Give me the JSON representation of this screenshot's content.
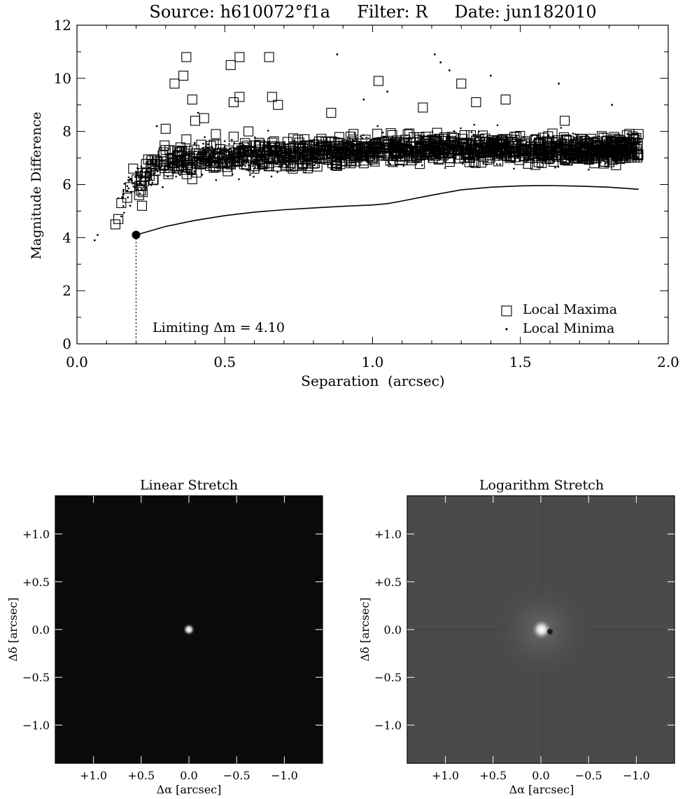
{
  "chart_data": [
    {
      "type": "scatter",
      "title": "Source: h610072°f1a     Filter: R     Date: jun182010",
      "xlabel": "Separation  (arcsec)",
      "ylabel": "Magnitude Difference",
      "xlim": [
        0.0,
        2.0
      ],
      "ylim": [
        0,
        12
      ],
      "x_ticks": [
        "0.0",
        "0.5",
        "1.0",
        "1.5",
        "2.0"
      ],
      "y_ticks": [
        "0",
        "2",
        "4",
        "6",
        "8",
        "10",
        "12"
      ],
      "legend": {
        "placement": "bottom-right",
        "entries": [
          "Local Maxima",
          "Local Minima"
        ]
      },
      "annotation": "Limiting Δm = 4.10",
      "limiting_point": {
        "x": 0.2,
        "y": 4.1
      },
      "series": [
        {
          "name": "Local Maxima",
          "marker": "square",
          "x": [
            0.13,
            0.14,
            0.15,
            0.17,
            0.18,
            0.19,
            0.21,
            0.22,
            0.23,
            0.25,
            0.27,
            0.29,
            0.3,
            0.31,
            0.33,
            0.35,
            0.37,
            0.39,
            0.4,
            0.42,
            0.45,
            0.47,
            0.49,
            0.51,
            0.53,
            0.55,
            0.57,
            0.6,
            0.62,
            0.65,
            0.67,
            0.7,
            0.73,
            0.76,
            0.79,
            0.82,
            0.85,
            0.88,
            0.91,
            0.94,
            0.97,
            1.0,
            1.03,
            1.06,
            1.09,
            1.12,
            1.15,
            1.18,
            1.21,
            1.24,
            1.27,
            1.3,
            1.33,
            1.36,
            1.39,
            1.42,
            1.45,
            1.48,
            1.51,
            1.54,
            1.57,
            1.6,
            1.63,
            1.66,
            1.69,
            1.72,
            1.75,
            1.78,
            1.81,
            1.84,
            1.87,
            1.9,
            0.33,
            0.36,
            0.37,
            0.52,
            0.55,
            0.65,
            1.02,
            1.3,
            1.45,
            0.39,
            0.53,
            0.55,
            0.66,
            0.68,
            1.35,
            1.65,
            0.3,
            0.43,
            0.58,
            0.86,
            1.17
          ],
          "y": [
            4.5,
            4.7,
            5.3,
            5.5,
            5.9,
            6.6,
            5.6,
            5.2,
            6.3,
            6.6,
            6.9,
            7.1,
            7.3,
            6.5,
            6.8,
            7.4,
            7.7,
            6.2,
            8.4,
            7.5,
            6.7,
            7.9,
            7.2,
            6.5,
            7.8,
            6.9,
            7.3,
            6.6,
            7.1,
            6.8,
            7.4,
            7.0,
            6.6,
            7.2,
            6.9,
            7.3,
            7.0,
            6.7,
            7.5,
            7.1,
            6.8,
            7.4,
            7.2,
            6.9,
            7.6,
            7.3,
            7.0,
            7.8,
            7.4,
            7.1,
            7.6,
            7.3,
            7.0,
            7.7,
            7.2,
            7.5,
            7.1,
            7.8,
            7.3,
            7.0,
            7.6,
            7.2,
            7.4,
            6.9,
            7.5,
            7.1,
            6.8,
            7.3,
            7.6,
            7.0,
            7.4,
            7.9,
            9.8,
            10.1,
            10.8,
            10.5,
            10.8,
            10.8,
            9.9,
            9.8,
            9.2,
            9.2,
            9.1,
            9.3,
            9.3,
            9.0,
            9.1,
            8.4,
            8.1,
            8.5,
            8.0,
            8.7,
            8.9
          ]
        },
        {
          "name": "Local Minima",
          "marker": "dot",
          "x": [
            0.06,
            0.07,
            0.15,
            0.18,
            0.22,
            0.26,
            0.29,
            0.32,
            0.35,
            0.38,
            0.41,
            0.44,
            0.47,
            0.5,
            0.53,
            0.56,
            0.59,
            0.62,
            0.65,
            0.68,
            0.71,
            0.74,
            0.77,
            0.8,
            0.83,
            0.86,
            0.89,
            0.92,
            0.95,
            0.98,
            1.01,
            1.04,
            1.07,
            1.1,
            1.13,
            1.16,
            1.19,
            1.22,
            1.25,
            1.28,
            1.31,
            1.34,
            1.37,
            1.4,
            1.43,
            1.46,
            1.49,
            1.52,
            1.55,
            1.58,
            1.61,
            1.64,
            1.67,
            1.7,
            1.73,
            1.76,
            1.79,
            1.82,
            1.85,
            1.88,
            0.88,
            1.21,
            1.23,
            1.26,
            1.4,
            1.63,
            1.81,
            0.27,
            0.41,
            1.05,
            0.97
          ],
          "y": [
            3.9,
            4.1,
            4.8,
            5.2,
            6.0,
            6.4,
            5.9,
            6.8,
            7.0,
            6.5,
            7.2,
            6.7,
            7.5,
            6.9,
            7.1,
            6.6,
            7.3,
            6.8,
            7.4,
            7.0,
            6.7,
            7.3,
            6.9,
            7.1,
            7.4,
            6.8,
            7.2,
            7.0,
            7.5,
            6.9,
            7.3,
            7.1,
            7.6,
            7.0,
            7.4,
            7.2,
            6.9,
            7.5,
            7.3,
            7.0,
            7.6,
            7.2,
            7.4,
            7.1,
            7.7,
            7.3,
            7.0,
            7.5,
            7.2,
            7.4,
            6.9,
            7.6,
            7.1,
            7.3,
            6.8,
            7.5,
            7.2,
            7.0,
            7.4,
            7.1,
            10.9,
            10.9,
            10.6,
            10.3,
            10.1,
            9.8,
            9.0,
            8.2,
            8.7,
            9.5,
            9.2
          ]
        },
        {
          "name": "",
          "marker": "line",
          "x": [
            0.2,
            0.3,
            0.4,
            0.5,
            0.6,
            0.7,
            0.8,
            0.9,
            1.0,
            1.05,
            1.1,
            1.2,
            1.3,
            1.4,
            1.5,
            1.6,
            1.7,
            1.8,
            1.9
          ],
          "y": [
            4.1,
            4.42,
            4.65,
            4.83,
            4.96,
            5.05,
            5.12,
            5.18,
            5.23,
            5.28,
            5.38,
            5.6,
            5.8,
            5.9,
            5.95,
            5.96,
            5.94,
            5.9,
            5.82
          ]
        }
      ]
    },
    {
      "type": "heatmap",
      "title": "Linear Stretch",
      "xlabel": "Δα [arcsec]",
      "ylabel": "Δδ [arcsec]",
      "x_ticks": [
        "+1.0",
        "+0.5",
        "0.0",
        "−0.5",
        "−1.0"
      ],
      "y_ticks": [
        "+1.0",
        "+0.5",
        "0.0",
        "−0.5",
        "−1.0"
      ],
      "xlim": [
        1.4,
        -1.4
      ],
      "ylim": [
        -1.4,
        1.4
      ],
      "background": "#0a0a0a"
    },
    {
      "type": "heatmap",
      "title": "Logarithm Stretch",
      "xlabel": "Δα [arcsec]",
      "ylabel": "Δδ [arcsec]",
      "x_ticks": [
        "+1.0",
        "+0.5",
        "0.0",
        "−0.5",
        "−1.0"
      ],
      "y_ticks": [
        "+1.0",
        "+0.5",
        "0.0",
        "−0.5",
        "−1.0"
      ],
      "xlim": [
        1.4,
        -1.4
      ],
      "ylim": [
        -1.4,
        1.4
      ],
      "background": "#4a4a4a"
    }
  ]
}
